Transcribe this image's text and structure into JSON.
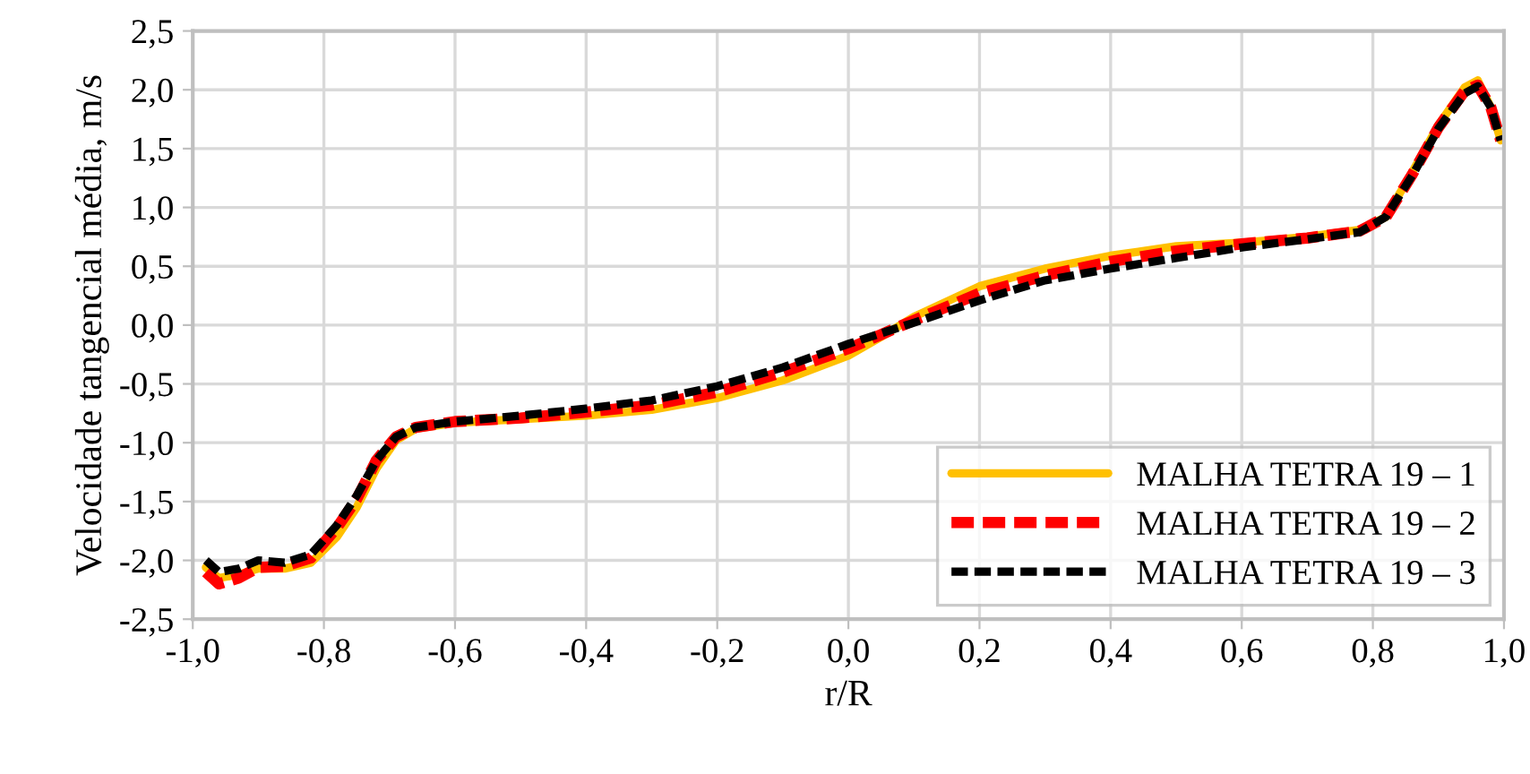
{
  "chart_data": {
    "type": "line",
    "xlabel": "r/R",
    "ylabel": "Velocidade tangencial média, m/s",
    "x": [
      -0.98,
      -0.96,
      -0.93,
      -0.9,
      -0.86,
      -0.82,
      -0.78,
      -0.75,
      -0.72,
      -0.69,
      -0.66,
      -0.6,
      -0.5,
      -0.4,
      -0.3,
      -0.2,
      -0.1,
      0.0,
      0.05,
      0.1,
      0.2,
      0.3,
      0.4,
      0.5,
      0.6,
      0.7,
      0.78,
      0.82,
      0.86,
      0.9,
      0.94,
      0.96,
      0.98,
      0.995
    ],
    "series": [
      {
        "name": "MALHA TETRA 19 – 1",
        "color": "#ffc000",
        "line_style": "solid",
        "values": [
          -2.06,
          -2.15,
          -2.12,
          -2.07,
          -2.07,
          -2.02,
          -1.8,
          -1.55,
          -1.22,
          -0.98,
          -0.88,
          -0.83,
          -0.8,
          -0.77,
          -0.72,
          -0.62,
          -0.47,
          -0.26,
          -0.1,
          0.07,
          0.33,
          0.48,
          0.59,
          0.67,
          0.7,
          0.75,
          0.81,
          0.92,
          1.3,
          1.7,
          2.02,
          2.08,
          1.85,
          1.57
        ]
      },
      {
        "name": "MALHA TETRA 19 – 2",
        "color": "#ff0000",
        "line_style": "dashed",
        "values": [
          -2.1,
          -2.2,
          -2.15,
          -2.06,
          -2.05,
          -1.98,
          -1.72,
          -1.48,
          -1.15,
          -0.95,
          -0.87,
          -0.82,
          -0.79,
          -0.74,
          -0.68,
          -0.57,
          -0.4,
          -0.2,
          -0.08,
          0.04,
          0.27,
          0.42,
          0.54,
          0.63,
          0.69,
          0.74,
          0.8,
          0.92,
          1.28,
          1.68,
          1.99,
          2.04,
          1.85,
          1.57
        ]
      },
      {
        "name": "MALHA TETRA 19 – 3",
        "color": "#000000",
        "line_style": "dashed",
        "values": [
          -2.0,
          -2.1,
          -2.07,
          -2.0,
          -2.02,
          -1.95,
          -1.7,
          -1.45,
          -1.15,
          -0.95,
          -0.87,
          -0.82,
          -0.77,
          -0.71,
          -0.64,
          -0.52,
          -0.36,
          -0.16,
          -0.07,
          0.02,
          0.21,
          0.38,
          0.48,
          0.57,
          0.66,
          0.73,
          0.79,
          0.92,
          1.27,
          1.67,
          1.97,
          2.03,
          1.85,
          1.57
        ]
      }
    ],
    "xlim": [
      -1.0,
      1.0
    ],
    "xticks": [
      {
        "value": -1.0,
        "label": "-1,0"
      },
      {
        "value": -0.8,
        "label": "-0,8"
      },
      {
        "value": -0.6,
        "label": "-0,6"
      },
      {
        "value": -0.4,
        "label": "-0,4"
      },
      {
        "value": -0.2,
        "label": "-0,2"
      },
      {
        "value": 0.0,
        "label": "0,0"
      },
      {
        "value": 0.2,
        "label": "0,2"
      },
      {
        "value": 0.4,
        "label": "0,4"
      },
      {
        "value": 0.6,
        "label": "0,6"
      },
      {
        "value": 0.8,
        "label": "0,8"
      },
      {
        "value": 1.0,
        "label": "1,0"
      }
    ],
    "ylim": [
      -2.5,
      2.5
    ],
    "yticks": [
      {
        "value": -2.5,
        "label": "-2,5"
      },
      {
        "value": -2.0,
        "label": "-2,0"
      },
      {
        "value": -1.5,
        "label": "-1,5"
      },
      {
        "value": -1.0,
        "label": "-1,0"
      },
      {
        "value": -0.5,
        "label": "-0,5"
      },
      {
        "value": 0.0,
        "label": "0,0"
      },
      {
        "value": 0.5,
        "label": "0,5"
      },
      {
        "value": 1.0,
        "label": "1,0"
      },
      {
        "value": 1.5,
        "label": "1,5"
      },
      {
        "value": 2.0,
        "label": "2,0"
      },
      {
        "value": 2.5,
        "label": "2,5"
      }
    ],
    "grid": true,
    "legend": "bottom right",
    "marker": "none"
  }
}
